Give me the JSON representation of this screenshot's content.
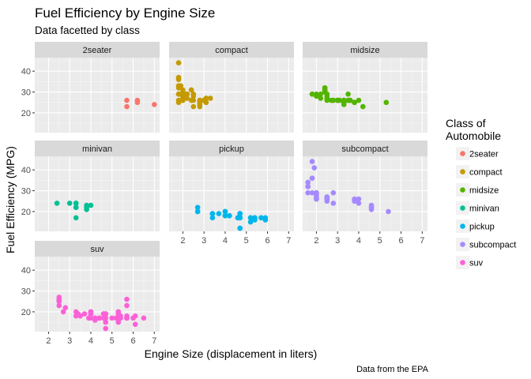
{
  "chart_data": {
    "type": "scatter",
    "title": "Fuel Efficiency by Engine Size",
    "subtitle": "Data facetted by class",
    "xlabel": "Engine Size (displacement in liters)",
    "ylabel": "Fuel Efficiency (MPG)",
    "caption": "Data from the EPA",
    "legend_title": "Class of Automobile",
    "legend_title_lines": [
      "Class of",
      "Automobile"
    ],
    "legend_position": "right",
    "grid": true,
    "xlim": [
      1.35,
      7.25
    ],
    "ylim": [
      10.5,
      46.5
    ],
    "x_ticks": [
      2,
      3,
      4,
      5,
      6,
      7
    ],
    "y_ticks": [
      20,
      30,
      40
    ],
    "panel_background": "#ebebeb",
    "strip_background": "#d9d9d9",
    "series": [
      {
        "name": "2seater",
        "color": "#F8766D",
        "points": [
          [
            5.7,
            26
          ],
          [
            5.7,
            23
          ],
          [
            6.2,
            26
          ],
          [
            6.2,
            25
          ],
          [
            7.0,
            24
          ]
        ]
      },
      {
        "name": "compact",
        "color": "#C49A00",
        "points": [
          [
            1.8,
            29
          ],
          [
            1.8,
            29
          ],
          [
            2.0,
            31
          ],
          [
            2.0,
            30
          ],
          [
            2.8,
            26
          ],
          [
            2.8,
            26
          ],
          [
            3.1,
            27
          ],
          [
            1.8,
            26
          ],
          [
            1.8,
            25
          ],
          [
            2.0,
            28
          ],
          [
            2.0,
            28
          ],
          [
            2.8,
            25
          ],
          [
            2.8,
            25
          ],
          [
            3.1,
            25
          ],
          [
            3.1,
            25
          ],
          [
            2.2,
            27
          ],
          [
            2.2,
            29
          ],
          [
            2.4,
            31
          ],
          [
            2.4,
            31
          ],
          [
            3.0,
            26
          ],
          [
            3.0,
            26
          ],
          [
            3.3,
            27
          ],
          [
            1.8,
            44
          ],
          [
            1.8,
            29
          ],
          [
            1.8,
            36
          ],
          [
            1.8,
            37
          ],
          [
            2.0,
            29
          ],
          [
            1.9,
            33
          ],
          [
            2.0,
            26
          ],
          [
            2.0,
            29
          ],
          [
            2.5,
            28
          ],
          [
            2.5,
            29
          ],
          [
            2.8,
            24
          ],
          [
            2.8,
            24
          ],
          [
            2.0,
            26
          ],
          [
            2.0,
            29
          ],
          [
            2.0,
            27
          ],
          [
            2.5,
            23
          ],
          [
            2.5,
            26
          ],
          [
            2.0,
            29
          ],
          [
            2.8,
            26
          ],
          [
            2.8,
            24
          ],
          [
            2.8,
            23
          ],
          [
            1.8,
            32
          ],
          [
            1.8,
            33
          ],
          [
            2.2,
            29
          ],
          [
            2.4,
            26
          ]
        ]
      },
      {
        "name": "midsize",
        "color": "#53B400",
        "points": [
          [
            2.4,
            30
          ],
          [
            2.4,
            31
          ],
          [
            3.1,
            26
          ],
          [
            3.5,
            26
          ],
          [
            3.6,
            26
          ],
          [
            2.4,
            31
          ],
          [
            3.0,
            26
          ],
          [
            3.3,
            25
          ],
          [
            3.3,
            24
          ],
          [
            3.3,
            26
          ],
          [
            3.8,
            25
          ],
          [
            3.8,
            25
          ],
          [
            3.8,
            25
          ],
          [
            4.0,
            26
          ],
          [
            5.3,
            25
          ],
          [
            2.2,
            27
          ],
          [
            2.2,
            29
          ],
          [
            2.4,
            31
          ],
          [
            2.4,
            31
          ],
          [
            3.0,
            26
          ],
          [
            3.0,
            26
          ],
          [
            3.5,
            29
          ],
          [
            1.8,
            29
          ],
          [
            1.8,
            29
          ],
          [
            2.0,
            28
          ],
          [
            2.0,
            29
          ],
          [
            2.8,
            26
          ],
          [
            2.8,
            26
          ],
          [
            3.6,
            26
          ],
          [
            2.5,
            29
          ],
          [
            2.5,
            26
          ],
          [
            3.5,
            26
          ],
          [
            2.4,
            32
          ],
          [
            2.4,
            32
          ],
          [
            2.5,
            29
          ],
          [
            2.5,
            29
          ],
          [
            2.7,
            26
          ],
          [
            3.0,
            26
          ],
          [
            3.3,
            26
          ],
          [
            4.2,
            23
          ],
          [
            2.5,
            28
          ],
          [
            2.5,
            27
          ]
        ]
      },
      {
        "name": "minivan",
        "color": "#00C094",
        "points": [
          [
            2.4,
            24
          ],
          [
            3.0,
            24
          ],
          [
            3.3,
            22
          ],
          [
            3.3,
            22
          ],
          [
            3.3,
            24
          ],
          [
            3.3,
            24
          ],
          [
            3.3,
            17
          ],
          [
            3.8,
            22
          ],
          [
            3.8,
            21
          ],
          [
            3.8,
            23
          ],
          [
            4.0,
            23
          ]
        ]
      },
      {
        "name": "pickup",
        "color": "#00B6EB",
        "points": [
          [
            2.7,
            20
          ],
          [
            2.7,
            20
          ],
          [
            2.7,
            22
          ],
          [
            3.4,
            17
          ],
          [
            3.4,
            19
          ],
          [
            4.0,
            18
          ],
          [
            4.0,
            20
          ],
          [
            4.7,
            17
          ],
          [
            4.7,
            19
          ],
          [
            4.7,
            17
          ],
          [
            4.7,
            12
          ],
          [
            5.2,
            17
          ],
          [
            5.2,
            17
          ],
          [
            5.7,
            17
          ],
          [
            5.9,
            17
          ],
          [
            4.7,
            19
          ],
          [
            4.7,
            12
          ],
          [
            4.7,
            17
          ],
          [
            5.2,
            15
          ],
          [
            5.7,
            17
          ],
          [
            5.9,
            16
          ],
          [
            4.6,
            17
          ],
          [
            5.4,
            17
          ],
          [
            5.4,
            16
          ],
          [
            2.7,
            20
          ],
          [
            3.4,
            19
          ],
          [
            4.0,
            20
          ],
          [
            4.0,
            18
          ],
          [
            4.0,
            20
          ],
          [
            4.6,
            17
          ],
          [
            4.6,
            17
          ],
          [
            5.4,
            17
          ],
          [
            4.2,
            18
          ],
          [
            4.2,
            18
          ],
          [
            3.7,
            19
          ],
          [
            4.0,
            18
          ],
          [
            4.7,
            19
          ],
          [
            4.7,
            17
          ]
        ]
      },
      {
        "name": "subcompact",
        "color": "#A58AFF",
        "points": [
          [
            2.0,
            29
          ],
          [
            2.0,
            26
          ],
          [
            2.0,
            28
          ],
          [
            2.0,
            29
          ],
          [
            2.5,
            26
          ],
          [
            2.5,
            26
          ],
          [
            2.5,
            25
          ],
          [
            1.6,
            32
          ],
          [
            1.6,
            32
          ],
          [
            1.6,
            29
          ],
          [
            1.6,
            32
          ],
          [
            1.6,
            34
          ],
          [
            1.8,
            36
          ],
          [
            1.8,
            36
          ],
          [
            1.8,
            29
          ],
          [
            2.0,
            26
          ],
          [
            2.0,
            27
          ],
          [
            2.5,
            26
          ],
          [
            2.5,
            27
          ],
          [
            3.8,
            26
          ],
          [
            3.8,
            25
          ],
          [
            4.0,
            26
          ],
          [
            4.0,
            24
          ],
          [
            4.6,
            21
          ],
          [
            4.6,
            22
          ],
          [
            4.6,
            23
          ],
          [
            4.6,
            22
          ],
          [
            5.4,
            20
          ],
          [
            1.8,
            44
          ],
          [
            1.9,
            41
          ],
          [
            2.0,
            29
          ],
          [
            2.0,
            26
          ],
          [
            2.8,
            24
          ],
          [
            2.0,
            27
          ],
          [
            2.8,
            29
          ],
          [
            2.5,
            27
          ]
        ]
      },
      {
        "name": "suv",
        "color": "#FB61D7",
        "points": [
          [
            5.3,
            20
          ],
          [
            5.3,
            15
          ],
          [
            5.3,
            20
          ],
          [
            5.7,
            17
          ],
          [
            6.0,
            17
          ],
          [
            5.7,
            26
          ],
          [
            5.7,
            23
          ],
          [
            6.5,
            17
          ],
          [
            5.3,
            17
          ],
          [
            5.3,
            19
          ],
          [
            5.7,
            17
          ],
          [
            5.7,
            17
          ],
          [
            4.7,
            17
          ],
          [
            4.7,
            19
          ],
          [
            5.2,
            17
          ],
          [
            5.2,
            17
          ],
          [
            3.9,
            17
          ],
          [
            4.7,
            19
          ],
          [
            4.7,
            17
          ],
          [
            5.7,
            17
          ],
          [
            6.1,
            18
          ],
          [
            4.0,
            20
          ],
          [
            4.0,
            20
          ],
          [
            4.0,
            19
          ],
          [
            4.6,
            19
          ],
          [
            5.0,
            17
          ],
          [
            4.2,
            17
          ],
          [
            4.2,
            17
          ],
          [
            4.6,
            17
          ],
          [
            4.6,
            19
          ],
          [
            5.4,
            17
          ],
          [
            5.4,
            18
          ],
          [
            2.5,
            27
          ],
          [
            2.5,
            25
          ],
          [
            2.5,
            26
          ],
          [
            2.5,
            23
          ],
          [
            2.5,
            26
          ],
          [
            2.5,
            25
          ],
          [
            2.7,
            20
          ],
          [
            3.4,
            19
          ],
          [
            4.0,
            19
          ],
          [
            4.7,
            17
          ],
          [
            4.7,
            15
          ],
          [
            5.7,
            18
          ],
          [
            3.7,
            19
          ],
          [
            4.7,
            19
          ],
          [
            2.8,
            22
          ],
          [
            3.5,
            18
          ],
          [
            4.0,
            20
          ],
          [
            4.7,
            17
          ],
          [
            5.3,
            17
          ],
          [
            6.1,
            14
          ],
          [
            2.5,
            26
          ],
          [
            3.3,
            20
          ],
          [
            3.3,
            18
          ],
          [
            4.0,
            17
          ],
          [
            5.4,
            17
          ],
          [
            4.4,
            17
          ],
          [
            4.2,
            16
          ],
          [
            4.0,
            20
          ],
          [
            4.4,
            17
          ],
          [
            4.7,
            12
          ]
        ]
      }
    ]
  }
}
